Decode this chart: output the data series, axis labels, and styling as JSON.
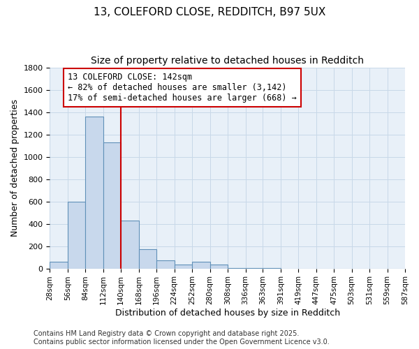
{
  "title_line1": "13, COLEFORD CLOSE, REDDITCH, B97 5UX",
  "title_line2": "Size of property relative to detached houses in Redditch",
  "xlabel": "Distribution of detached houses by size in Redditch",
  "ylabel": "Number of detached properties",
  "annotation_title": "13 COLEFORD CLOSE: 142sqm",
  "annotation_line1": "← 82% of detached houses are smaller (3,142)",
  "annotation_line2": "17% of semi-detached houses are larger (668) →",
  "bin_edges": [
    28,
    56,
    84,
    112,
    140,
    168,
    196,
    224,
    252,
    280,
    308,
    336,
    363,
    391,
    419,
    447,
    475,
    503,
    531,
    559,
    587
  ],
  "bar_heights": [
    60,
    600,
    1360,
    1130,
    430,
    170,
    70,
    35,
    60,
    35,
    5,
    2,
    1,
    0,
    0,
    0,
    0,
    0,
    0,
    0
  ],
  "bar_color": "#c8d8ec",
  "bar_edge_color": "#6090b8",
  "vline_color": "#cc0000",
  "vline_x": 140,
  "ylim": [
    0,
    1800
  ],
  "yticks": [
    0,
    200,
    400,
    600,
    800,
    1000,
    1200,
    1400,
    1600,
    1800
  ],
  "grid_color": "#c8d8e8",
  "bg_color": "#e8f0f8",
  "fig_bg_color": "#ffffff",
  "annotation_box_color": "#ffffff",
  "annotation_box_edge": "#cc0000",
  "footer_line1": "Contains HM Land Registry data © Crown copyright and database right 2025.",
  "footer_line2": "Contains public sector information licensed under the Open Government Licence v3.0.",
  "title_fontsize": 11,
  "subtitle_fontsize": 10,
  "axis_label_fontsize": 9,
  "tick_fontsize": 8,
  "annotation_fontsize": 8.5,
  "footer_fontsize": 7
}
